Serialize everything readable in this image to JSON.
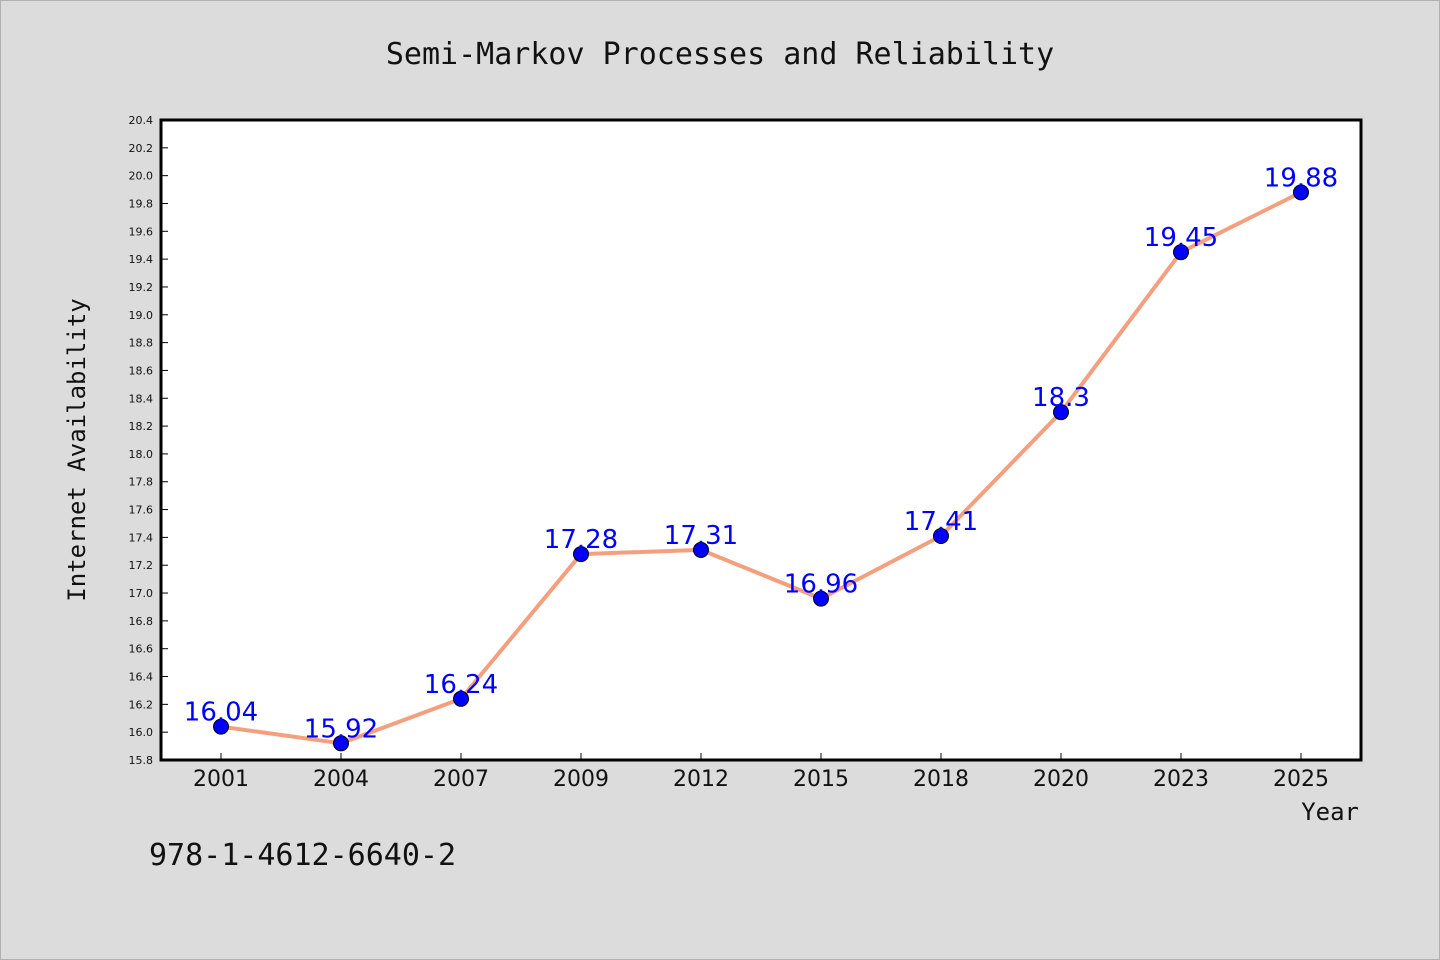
{
  "chart_data": {
    "type": "line",
    "title": "Semi-Markov Processes and Reliability",
    "xlabel": "Year",
    "ylabel": "Internet Availability",
    "categories": [
      "2001",
      "2004",
      "2007",
      "2009",
      "2012",
      "2015",
      "2018",
      "2020",
      "2023",
      "2025"
    ],
    "series": [
      {
        "values": [
          16.04,
          15.92,
          16.24,
          17.28,
          17.31,
          16.96,
          17.41,
          18.3,
          19.45,
          19.88
        ],
        "value_labels": [
          "16.04",
          "15.92",
          "16.24",
          "17.28",
          "17.31",
          "16.96",
          "17.41",
          "18.3",
          "19.45",
          "19.88"
        ],
        "line_color": "#f4a07e",
        "marker_color": "#0000ff"
      }
    ],
    "ylim": [
      15.8,
      20.4
    ],
    "y_ticks": [
      "15.8",
      "16.0",
      "16.2",
      "16.4",
      "16.6",
      "16.8",
      "17.0",
      "17.2",
      "17.4",
      "17.6",
      "17.8",
      "18.0",
      "18.2",
      "18.4",
      "18.6",
      "18.8",
      "19.0",
      "19.2",
      "19.4",
      "19.6",
      "19.8",
      "20.0",
      "20.2",
      "20.4"
    ],
    "grid": false,
    "legend": "none",
    "plot_background": "#ffffff",
    "page_background": "#dcdcdc",
    "label_color": "#0000ff"
  },
  "footnote": "978-1-4612-6640-2"
}
